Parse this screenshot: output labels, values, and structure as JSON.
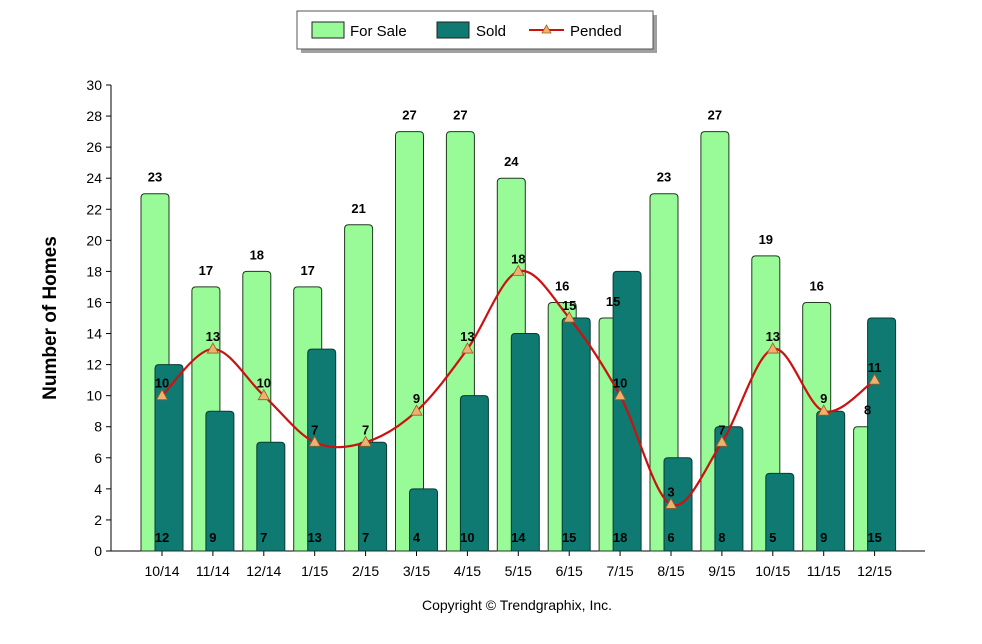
{
  "chart_data": {
    "type": "bar",
    "categories": [
      "10/14",
      "11/14",
      "12/14",
      "1/15",
      "2/15",
      "3/15",
      "4/15",
      "5/15",
      "6/15",
      "7/15",
      "8/15",
      "9/15",
      "10/15",
      "11/15",
      "12/15"
    ],
    "series": [
      {
        "name": "For Sale",
        "type": "bar",
        "color": "#98FB98",
        "values": [
          23,
          17,
          18,
          17,
          21,
          27,
          27,
          24,
          16,
          15,
          23,
          27,
          19,
          16,
          8
        ]
      },
      {
        "name": "Sold",
        "type": "bar",
        "color": "#0E7A72",
        "values": [
          12,
          9,
          7,
          13,
          7,
          4,
          10,
          14,
          15,
          18,
          6,
          8,
          5,
          9,
          15
        ]
      },
      {
        "name": "Pended",
        "type": "line",
        "color": "#CC1111",
        "marker_color": "#F0B070",
        "values": [
          10,
          13,
          10,
          7,
          7,
          9,
          13,
          18,
          15,
          10,
          3,
          7,
          13,
          9,
          11
        ]
      }
    ],
    "ylabel": "Number of Homes",
    "xlabel": "",
    "ylim": [
      0,
      30
    ],
    "yticks": [
      0,
      2,
      4,
      6,
      8,
      10,
      12,
      14,
      16,
      18,
      20,
      22,
      24,
      26,
      28,
      30
    ],
    "grid": false,
    "legend_position": "top-center"
  },
  "footer": {
    "copyright": "Copyright © Trendgraphix, Inc."
  }
}
